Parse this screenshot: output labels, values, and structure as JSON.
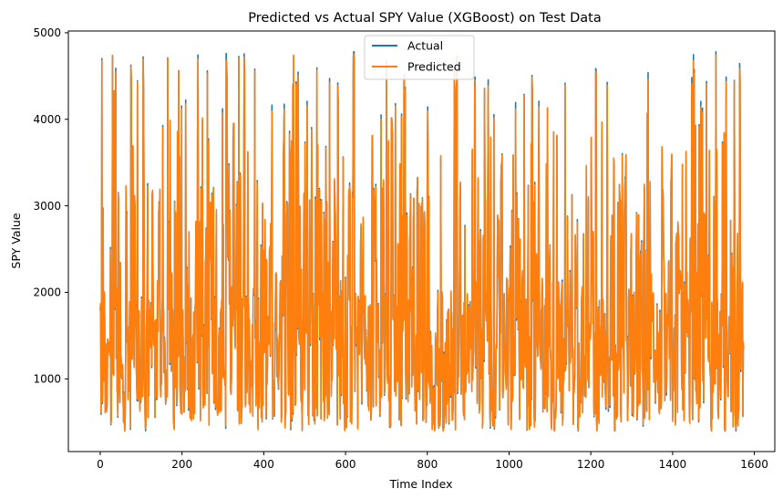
{
  "chart_data": {
    "type": "line",
    "title": "Predicted vs Actual SPY Value (XGBoost) on Test Data",
    "xlabel": "Time Index",
    "ylabel": "SPY Value",
    "xlim": [
      -78,
      1650
    ],
    "ylim": [
      160,
      5020
    ],
    "xticks": [
      0,
      200,
      400,
      600,
      800,
      1000,
      1200,
      1400,
      1600
    ],
    "yticks": [
      1000,
      2000,
      3000,
      4000,
      5000
    ],
    "grid": false,
    "legend_position": "top-center",
    "n_points": 1575,
    "value_range": [
      400,
      4780
    ],
    "series": [
      {
        "name": "Actual",
        "color": "#1f77b4"
      },
      {
        "name": "Predicted",
        "color": "#ff7f0e"
      }
    ],
    "notable_peaks": [
      {
        "x": 4,
        "actual": 4700,
        "predicted": 4680
      },
      {
        "x": 30,
        "actual": 4730,
        "predicted": 4740
      },
      {
        "x": 165,
        "actual": 4710,
        "predicted": 4700
      },
      {
        "x": 262,
        "actual": 4560,
        "predicted": 4530
      },
      {
        "x": 378,
        "actual": 4580,
        "predicted": 4560
      },
      {
        "x": 473,
        "actual": 4730,
        "predicted": 4740
      },
      {
        "x": 700,
        "actual": 4670,
        "predicted": 4660
      },
      {
        "x": 1340,
        "actual": 4540,
        "predicted": 4460
      },
      {
        "x": 1506,
        "actual": 4780,
        "predicted": 4740
      },
      {
        "x": 1565,
        "actual": 4490,
        "predicted": 4430
      }
    ]
  }
}
